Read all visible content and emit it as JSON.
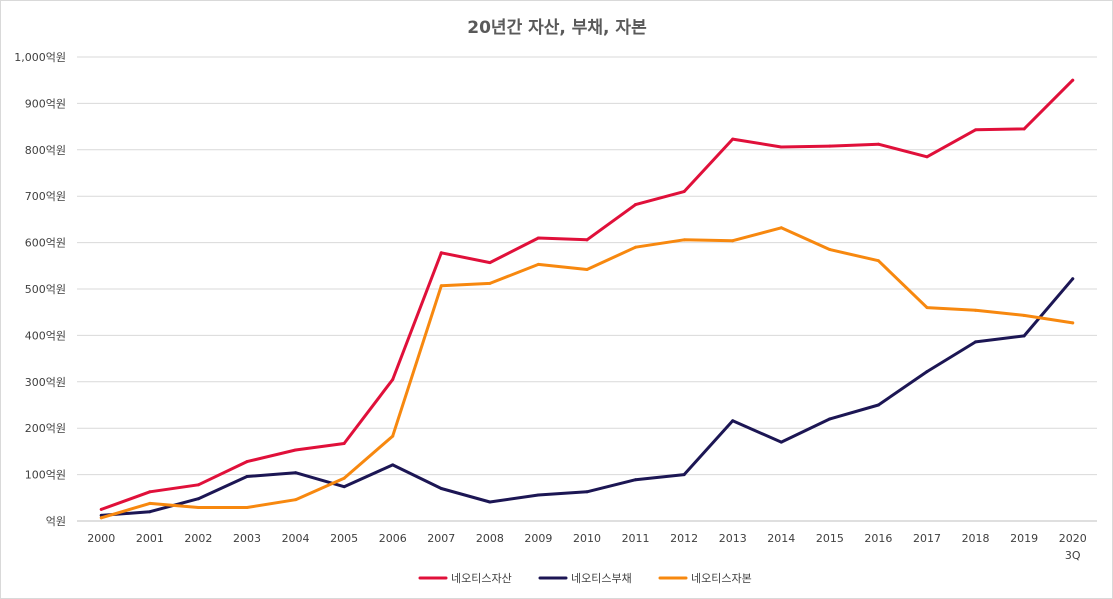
{
  "chart_data": {
    "type": "line",
    "title": "20년간 자산, 부채, 자본",
    "categories": [
      "2000",
      "2001",
      "2002",
      "2003",
      "2004",
      "2005",
      "2006",
      "2007",
      "2008",
      "2009",
      "2010",
      "2011",
      "2012",
      "2013",
      "2014",
      "2015",
      "2016",
      "2017",
      "2018",
      "2019",
      "2020"
    ],
    "category_sublabels": {
      "2020": "3Q"
    },
    "y_tick_labels": [
      "억원",
      "100억원",
      "200억원",
      "300억원",
      "400억원",
      "500억원",
      "600억원",
      "700억원",
      "800억원",
      "900억원",
      "1,000억원"
    ],
    "y_tick_values": [
      0,
      100,
      200,
      300,
      400,
      500,
      600,
      700,
      800,
      900,
      1000
    ],
    "ylim": [
      0,
      1000
    ],
    "grid": true,
    "legend_position": "bottom",
    "series": [
      {
        "name": "네오티스자산",
        "color": "#e0103a",
        "values": [
          25,
          63,
          78,
          128,
          153,
          167,
          305,
          578,
          557,
          610,
          606,
          682,
          710,
          823,
          806,
          808,
          812,
          785,
          843,
          845,
          950
        ]
      },
      {
        "name": "네오티스부채",
        "color": "#1c1654",
        "values": [
          12,
          20,
          48,
          96,
          104,
          74,
          121,
          70,
          41,
          56,
          63,
          89,
          100,
          216,
          170,
          220,
          250,
          322,
          386,
          399,
          522
        ]
      },
      {
        "name": "네오티스자본",
        "color": "#f7880f",
        "values": [
          7,
          38,
          29,
          29,
          46,
          92,
          183,
          507,
          512,
          553,
          542,
          590,
          606,
          604,
          632,
          585,
          561,
          460,
          454,
          443,
          427
        ]
      }
    ]
  }
}
